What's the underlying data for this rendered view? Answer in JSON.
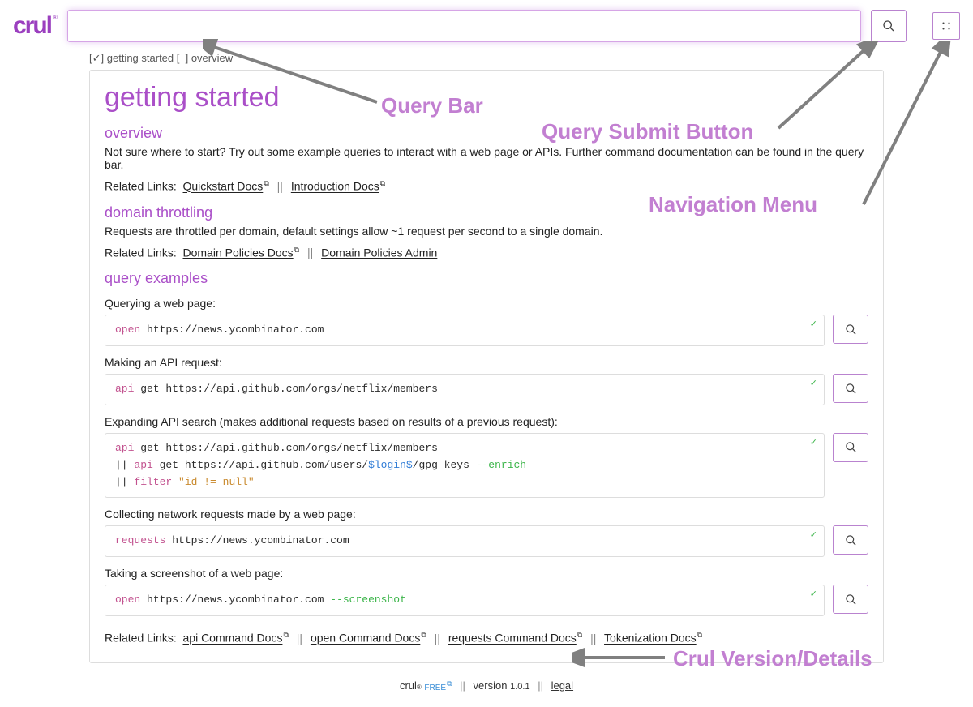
{
  "brand": {
    "name": "crul",
    "registered": "®"
  },
  "query_bar": {
    "placeholder": ""
  },
  "breadcrumb": {
    "checked_label": "getting started",
    "unchecked_label": "overview"
  },
  "page": {
    "title": "getting started"
  },
  "overview": {
    "heading": "overview",
    "text": "Not sure where to start? Try out some example queries to interact with a web page or APIs. Further command documentation can be found in the query bar.",
    "related_label": "Related Links:",
    "links": [
      {
        "label": "Quickstart Docs"
      },
      {
        "label": "Introduction Docs"
      }
    ]
  },
  "throttling": {
    "heading": "domain throttling",
    "text": "Requests are throttled per domain, default settings allow ~1 request per second to a single domain.",
    "related_label": "Related Links:",
    "links": [
      {
        "label": "Domain Policies Docs"
      },
      {
        "label": "Domain Policies Admin"
      }
    ]
  },
  "examples_heading": "query examples",
  "examples": [
    {
      "label": "Querying a web page:",
      "tokens": [
        {
          "t": "open",
          "c": "kw"
        },
        {
          "t": " https://news.ycombinator.com",
          "c": "plain"
        }
      ]
    },
    {
      "label": "Making an API request:",
      "tokens": [
        {
          "t": "api",
          "c": "kw"
        },
        {
          "t": " get https://api.github.com/orgs/netflix/members",
          "c": "plain"
        }
      ]
    },
    {
      "label": "Expanding API search (makes additional requests based on results of a previous request):",
      "tokens": [
        {
          "t": "api",
          "c": "kw"
        },
        {
          "t": " get https://api.github.com/orgs/netflix/members\n",
          "c": "plain"
        },
        {
          "t": "|| ",
          "c": "plain"
        },
        {
          "t": "api",
          "c": "kw"
        },
        {
          "t": " get https://api.github.com/users/",
          "c": "plain"
        },
        {
          "t": "$login$",
          "c": "var"
        },
        {
          "t": "/gpg_keys ",
          "c": "plain"
        },
        {
          "t": "--enrich",
          "c": "flag"
        },
        {
          "t": "\n|| ",
          "c": "plain"
        },
        {
          "t": "filter",
          "c": "kw"
        },
        {
          "t": " ",
          "c": "plain"
        },
        {
          "t": "\"id != null\"",
          "c": "str"
        }
      ]
    },
    {
      "label": "Collecting network requests made by a web page:",
      "tokens": [
        {
          "t": "requests",
          "c": "kw"
        },
        {
          "t": " https://news.ycombinator.com",
          "c": "plain"
        }
      ]
    },
    {
      "label": "Taking a screenshot of a web page:",
      "tokens": [
        {
          "t": "open",
          "c": "kw"
        },
        {
          "t": " https://news.ycombinator.com ",
          "c": "plain"
        },
        {
          "t": "--screenshot",
          "c": "flag"
        }
      ]
    }
  ],
  "bottom_related": {
    "label": "Related Links:",
    "links": [
      {
        "label": "api Command Docs"
      },
      {
        "label": "open Command Docs"
      },
      {
        "label": "requests Command Docs"
      },
      {
        "label": "Tokenization Docs"
      }
    ]
  },
  "footer": {
    "product": "crul",
    "tier": "FREE",
    "version_label": "version",
    "version_value": "1.0.1",
    "legal": "legal"
  },
  "annotations": {
    "query_bar": "Query Bar",
    "submit_button": "Query Submit Button",
    "nav_menu": "Navigation Menu",
    "version": "Crul Version/Details"
  },
  "colors": {
    "accent": "#aa4fc8",
    "anno": "#c27fd1",
    "flag": "#3cb54a",
    "var": "#2e7bd6",
    "str": "#c98a2e",
    "kw": "#c2528f",
    "border": "#dddddd"
  }
}
